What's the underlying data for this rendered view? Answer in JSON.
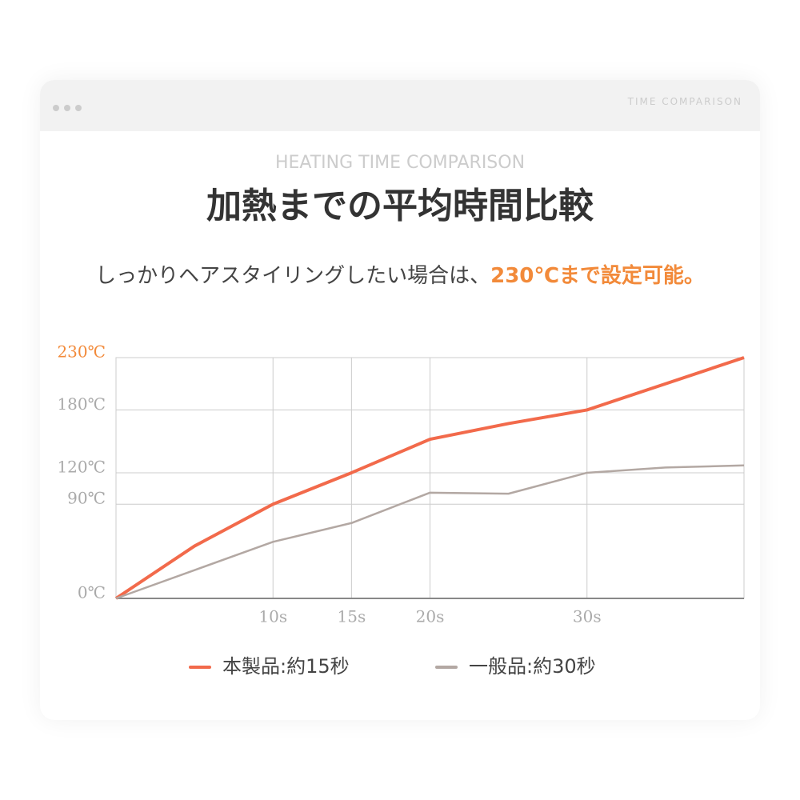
{
  "header": {
    "label": "TIME COMPARISON"
  },
  "chart_data": {
    "type": "line",
    "kicker": "HEATING TIME COMPARISON",
    "title": "加熱までの平均時間比較",
    "subtitle": "しっかりヘアスタイリングしたい場合は、",
    "subtitle_emphasis": "230℃まで設定可能。",
    "emphasis_color": "#f28a3a",
    "x": [
      0,
      5,
      10,
      15,
      20,
      25,
      30,
      35,
      40
    ],
    "xlim": [
      0,
      40
    ],
    "xticks": [
      {
        "value": 10,
        "label": "10s"
      },
      {
        "value": 15,
        "label": "15s"
      },
      {
        "value": 20,
        "label": "20s"
      },
      {
        "value": 30,
        "label": "30s"
      }
    ],
    "ylim": [
      0,
      230
    ],
    "yticks": [
      {
        "value": 0,
        "label": "0℃"
      },
      {
        "value": 90,
        "label": "90℃"
      },
      {
        "value": 120,
        "label": "120℃"
      },
      {
        "value": 180,
        "label": "180℃"
      },
      {
        "value": 230,
        "label": "230℃"
      }
    ],
    "grid": true,
    "series": [
      {
        "name": "本製品:約15秒",
        "color": "#f26a4b",
        "values": [
          0,
          50,
          90,
          120,
          152,
          167,
          180,
          205,
          230
        ]
      },
      {
        "name": "一般品:約30秒",
        "color": "#b3a8a3",
        "values": [
          0,
          27,
          54,
          72,
          101,
          100,
          120,
          125,
          127
        ]
      }
    ]
  }
}
